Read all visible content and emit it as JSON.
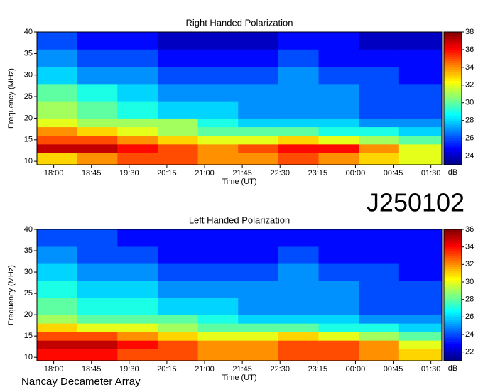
{
  "chart_data": [
    {
      "type": "heatmap",
      "title": "Right Handed Polarization",
      "xlabel": "Time (UT)",
      "ylabel": "Frequency (MHz)",
      "colormap": "jet",
      "xlim": [
        -20,
        463
      ],
      "ylim": [
        9.2,
        40
      ],
      "xticks": [
        {
          "value": 0,
          "label": "18:00"
        },
        {
          "value": 45,
          "label": "18:45"
        },
        {
          "value": 90,
          "label": "19:30"
        },
        {
          "value": 135,
          "label": "20:15"
        },
        {
          "value": 180,
          "label": "21:00"
        },
        {
          "value": 225,
          "label": "21:45"
        },
        {
          "value": 270,
          "label": "22:30"
        },
        {
          "value": 315,
          "label": "23:15"
        },
        {
          "value": 360,
          "label": "00:00"
        },
        {
          "value": 405,
          "label": "00:45"
        },
        {
          "value": 450,
          "label": "01:30"
        }
      ],
      "yticks": [
        10,
        15,
        20,
        25,
        30,
        35,
        40
      ],
      "xbins": [
        -20,
        28,
        76,
        124,
        172,
        220,
        268,
        316,
        364,
        412,
        463
      ],
      "ybins": [
        9.2,
        12,
        14,
        16,
        18,
        20,
        24,
        28,
        32,
        36,
        40
      ],
      "z": [
        [
          33,
          34,
          35,
          35,
          34,
          34,
          35,
          34,
          33,
          32
        ],
        [
          37,
          37,
          36,
          35,
          34,
          35,
          36,
          36,
          34,
          32
        ],
        [
          35,
          35,
          34,
          33,
          32,
          32,
          33,
          32,
          31,
          30
        ],
        [
          34,
          33,
          32,
          31,
          30,
          30,
          30,
          29,
          29,
          28
        ],
        [
          32,
          31,
          31,
          31,
          29,
          28,
          28,
          28,
          27,
          27
        ],
        [
          31,
          30,
          29,
          28,
          28,
          27,
          27,
          27,
          26,
          26
        ],
        [
          30,
          29,
          28,
          27,
          27,
          27,
          27,
          27,
          26,
          26
        ],
        [
          28,
          27,
          27,
          26,
          26,
          26,
          27,
          26,
          26,
          25
        ],
        [
          27,
          26,
          26,
          25,
          25,
          25,
          26,
          25,
          25,
          25
        ],
        [
          26,
          25,
          25,
          24,
          24,
          24,
          25,
          25,
          24,
          24
        ]
      ],
      "clim": [
        23,
        38
      ],
      "cticks": [
        24,
        26,
        28,
        30,
        32,
        34,
        36,
        38
      ],
      "colorbar_label": "dB"
    },
    {
      "type": "heatmap",
      "title": "Left Handed Polarization",
      "xlabel": "Time (UT)",
      "ylabel": "Frequency (MHz)",
      "colormap": "jet",
      "xlim": [
        -20,
        463
      ],
      "ylim": [
        9.2,
        40
      ],
      "xticks": [
        {
          "value": 0,
          "label": "18:00"
        },
        {
          "value": 45,
          "label": "18:45"
        },
        {
          "value": 90,
          "label": "19:30"
        },
        {
          "value": 135,
          "label": "20:15"
        },
        {
          "value": 180,
          "label": "21:00"
        },
        {
          "value": 225,
          "label": "21:45"
        },
        {
          "value": 270,
          "label": "22:30"
        },
        {
          "value": 315,
          "label": "23:15"
        },
        {
          "value": 360,
          "label": "00:00"
        },
        {
          "value": 405,
          "label": "00:45"
        },
        {
          "value": 450,
          "label": "01:30"
        }
      ],
      "yticks": [
        10,
        15,
        20,
        25,
        30,
        35,
        40
      ],
      "xbins": [
        -20,
        28,
        76,
        124,
        172,
        220,
        268,
        316,
        364,
        412,
        463
      ],
      "ybins": [
        9.2,
        12,
        14,
        16,
        18,
        20,
        24,
        28,
        32,
        36,
        40
      ],
      "z": [
        [
          34,
          34,
          33,
          33,
          32,
          32,
          33,
          33,
          32,
          31
        ],
        [
          35,
          35,
          34,
          33,
          32,
          32,
          33,
          33,
          32,
          30
        ],
        [
          33,
          33,
          32,
          31,
          30,
          30,
          31,
          30,
          29,
          28
        ],
        [
          31,
          30,
          30,
          29,
          28,
          28,
          28,
          27,
          27,
          26
        ],
        [
          29,
          28,
          28,
          28,
          27,
          26,
          26,
          26,
          25,
          25
        ],
        [
          28,
          27,
          27,
          26,
          26,
          25,
          25,
          25,
          24,
          24
        ],
        [
          27,
          26,
          26,
          25,
          25,
          25,
          25,
          25,
          24,
          24
        ],
        [
          26,
          25,
          25,
          24,
          24,
          24,
          25,
          24,
          24,
          23
        ],
        [
          25,
          24,
          24,
          23,
          23,
          23,
          24,
          23,
          23,
          23
        ],
        [
          24,
          24,
          23,
          23,
          23,
          23,
          23,
          23,
          23,
          23
        ]
      ],
      "clim": [
        21,
        36
      ],
      "cticks": [
        22,
        24,
        26,
        28,
        30,
        32,
        34,
        36
      ],
      "colorbar_label": "dB"
    }
  ],
  "label": "J250102",
  "footer": "Nancay Decameter Array"
}
